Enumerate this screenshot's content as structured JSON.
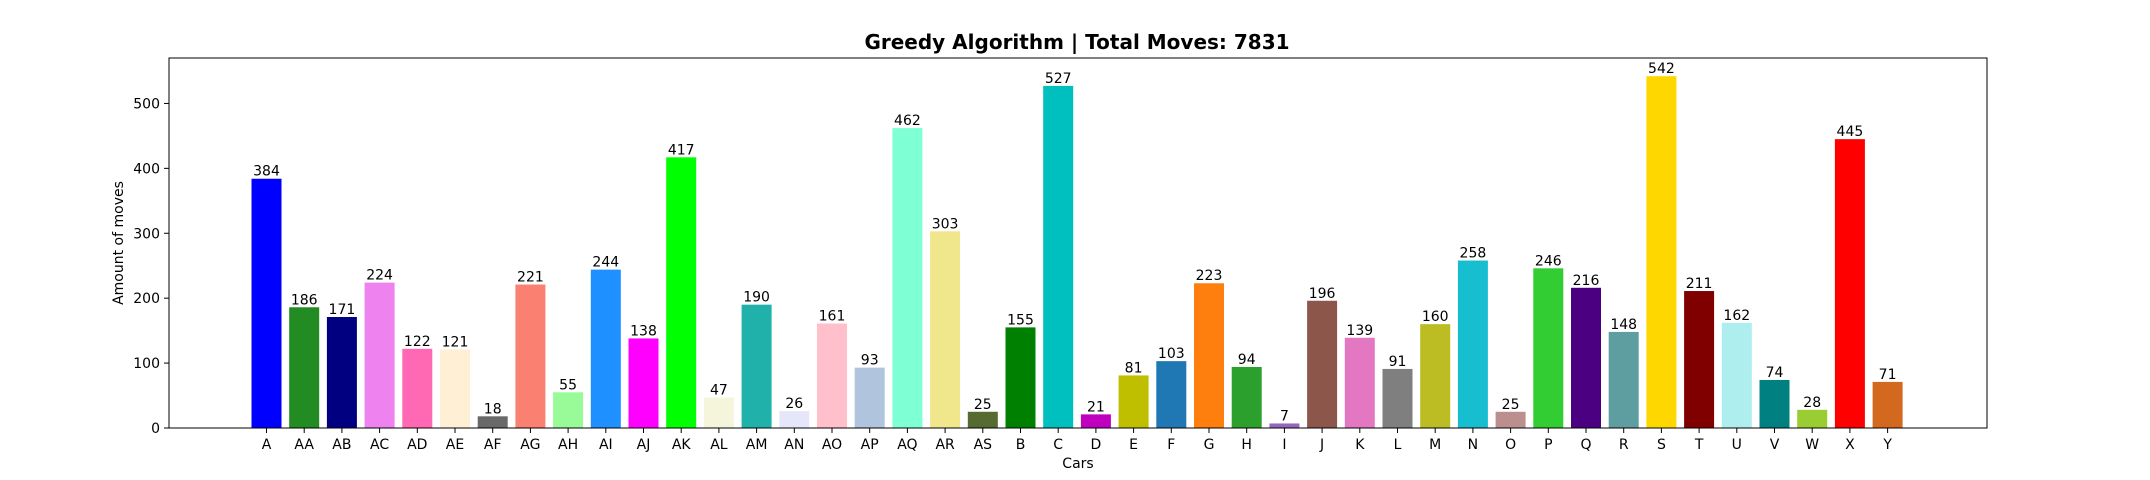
{
  "chart_data": {
    "type": "bar",
    "title": "Greedy Algorithm | Total Moves: 7831",
    "xlabel": "Cars",
    "ylabel": "Amount of moves",
    "ylim": [
      0,
      570
    ],
    "yticks": [
      0,
      100,
      200,
      300,
      400,
      500
    ],
    "grid": false,
    "legend": "none",
    "categories": [
      "A",
      "AA",
      "AB",
      "AC",
      "AD",
      "AE",
      "AF",
      "AG",
      "AH",
      "AI",
      "AJ",
      "AK",
      "AL",
      "AM",
      "AN",
      "AO",
      "AP",
      "AQ",
      "AR",
      "AS",
      "B",
      "C",
      "D",
      "E",
      "F",
      "G",
      "H",
      "I",
      "J",
      "K",
      "L",
      "M",
      "N",
      "O",
      "P",
      "Q",
      "R",
      "S",
      "T",
      "U",
      "V",
      "W",
      "X",
      "Y"
    ],
    "values": [
      384,
      186,
      171,
      224,
      122,
      121,
      18,
      221,
      55,
      244,
      138,
      417,
      47,
      190,
      26,
      161,
      93,
      462,
      303,
      25,
      155,
      527,
      21,
      81,
      103,
      223,
      94,
      7,
      196,
      139,
      91,
      160,
      258,
      25,
      246,
      216,
      148,
      542,
      211,
      162,
      74,
      28,
      445,
      71
    ],
    "colors": [
      "#0000ff",
      "#228b22",
      "#000080",
      "#ee82ee",
      "#ff69b4",
      "#ffefd5",
      "#696969",
      "#fa8072",
      "#98fb98",
      "#1e90ff",
      "#ff00ff",
      "#00ff00",
      "#f5f5dc",
      "#20b2aa",
      "#e6e6fa",
      "#ffc0cb",
      "#b0c4de",
      "#7fffd4",
      "#f0e68c",
      "#556b2f",
      "#008000",
      "#00bfbf",
      "#bf00bf",
      "#bfbf00",
      "#1f77b4",
      "#ff7f0e",
      "#2ca02c",
      "#9467bd",
      "#8c564b",
      "#e377c2",
      "#7f7f7f",
      "#bcbd22",
      "#17becf",
      "#bc8f8f",
      "#32cd32",
      "#4b0082",
      "#5f9ea0",
      "#ffd700",
      "#800000",
      "#afeeee",
      "#008080",
      "#9acd32",
      "#ff0000",
      "#d2691e"
    ]
  }
}
